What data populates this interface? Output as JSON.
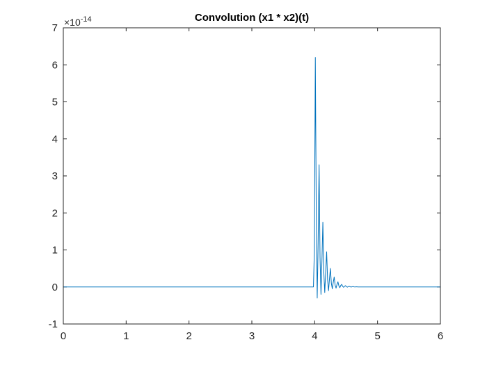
{
  "chart_data": {
    "type": "line",
    "title": "Convolution (x1 * x2)(t)",
    "xlabel": "",
    "ylabel": "",
    "xlim": [
      0,
      6
    ],
    "ylim": [
      -1,
      7
    ],
    "x_ticks": [
      0,
      1,
      2,
      3,
      4,
      5,
      6
    ],
    "y_ticks": [
      -1,
      0,
      1,
      2,
      3,
      4,
      5,
      6,
      7
    ],
    "y_exponent_prefix": "×10",
    "y_exponent": "-14",
    "grid": false,
    "box": true,
    "line_color": "#0072BD",
    "series": [
      {
        "x": [
          0,
          3.98,
          3.995,
          4.01,
          4.025,
          4.04,
          4.055,
          4.07,
          4.085,
          4.1,
          4.115,
          4.13,
          4.145,
          4.16,
          4.175,
          4.19,
          4.205,
          4.22,
          4.235,
          4.25,
          4.265,
          4.28,
          4.295,
          4.31,
          4.325,
          4.34,
          4.355,
          4.37,
          4.385,
          4.4,
          4.415,
          4.43,
          4.445,
          4.46,
          4.475,
          4.49,
          4.505,
          4.52,
          4.535,
          4.55,
          4.565,
          4.58,
          4.595,
          4.61,
          4.625,
          4.64,
          4.655,
          4.67,
          4.685,
          4.7,
          4.75,
          6
        ],
        "y": [
          0,
          0,
          1.0,
          6.2,
          2.0,
          -0.3,
          1.2,
          3.3,
          0.8,
          -0.2,
          0.7,
          1.75,
          0.4,
          -0.15,
          0.4,
          0.95,
          0.2,
          -0.1,
          0.22,
          0.5,
          0.1,
          -0.05,
          0.12,
          0.27,
          0.05,
          -0.03,
          0.07,
          0.14,
          0.03,
          -0.02,
          0.04,
          0.07,
          0.015,
          -0.01,
          0.02,
          0.035,
          0.008,
          -0.005,
          0.01,
          0.018,
          0.004,
          -0.003,
          0.005,
          0.009,
          0.002,
          -0.001,
          0.003,
          0.005,
          0.001,
          0,
          0,
          0
        ]
      }
    ]
  }
}
